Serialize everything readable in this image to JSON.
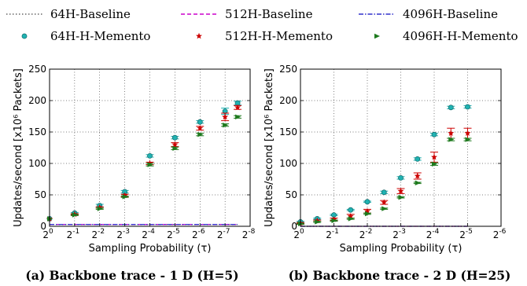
{
  "legend": [
    {
      "label": "64H-Baseline",
      "color": "#666666",
      "style": "dotted",
      "marker": "none"
    },
    {
      "label": "512H-Baseline",
      "color": "#cc00cc",
      "style": "dashed",
      "marker": "none"
    },
    {
      "label": "4096H-Baseline",
      "color": "#3030cc",
      "style": "dashdot",
      "marker": "none"
    },
    {
      "label": "64H-H-Memento",
      "color": "#20b2b2",
      "style": "none",
      "marker": "circle"
    },
    {
      "label": "512H-H-Memento",
      "color": "#cc0000",
      "style": "none",
      "marker": "star"
    },
    {
      "label": "4096H-H-Memento",
      "color": "#1e7a1e",
      "style": "none",
      "marker": "triangle"
    }
  ],
  "chart_data": [
    {
      "type": "scatter",
      "caption": "(a) Backbone trace - 1 D (H=5)",
      "xlabel": "Sampling Probability (τ)",
      "ylabel": "Updates/second [x10⁶ Packets]",
      "ylim": [
        0,
        250
      ],
      "yticks": [
        "0",
        "50",
        "100",
        "150",
        "200",
        "250"
      ],
      "xticks": [
        {
          "base": "2",
          "exp": "0"
        },
        {
          "base": "2",
          "exp": "-1"
        },
        {
          "base": "2",
          "exp": "-2"
        },
        {
          "base": "2",
          "exp": "-3"
        },
        {
          "base": "2",
          "exp": "-4"
        },
        {
          "base": "2",
          "exp": "-5"
        },
        {
          "base": "2",
          "exp": "-6"
        },
        {
          "base": "2",
          "exp": "-7"
        },
        {
          "base": "2",
          "exp": "-8"
        }
      ],
      "xlim": [
        0,
        8
      ],
      "grid": true,
      "x": [
        0,
        1,
        2,
        3,
        4,
        5,
        6,
        7,
        7.5
      ],
      "series": [
        {
          "name": "64H-Baseline",
          "values": [
            3,
            3,
            3,
            3,
            3,
            3,
            3,
            3,
            3
          ]
        },
        {
          "name": "512H-Baseline",
          "values": [
            3,
            3,
            3,
            3,
            3,
            3,
            3,
            3,
            3
          ]
        },
        {
          "name": "4096H-Baseline",
          "values": [
            3,
            3,
            3,
            3,
            3,
            3,
            3,
            3,
            3
          ]
        },
        {
          "name": "64H-H-Memento",
          "values": [
            12,
            21,
            33,
            55,
            112,
            141,
            166,
            183,
            196
          ]
        },
        {
          "name": "512H-H-Memento",
          "values": [
            12,
            19,
            30,
            49,
            100,
            130,
            156,
            174,
            189
          ]
        },
        {
          "name": "4096H-H-Memento",
          "values": [
            12,
            18,
            28,
            47,
            98,
            124,
            146,
            161,
            174
          ]
        }
      ],
      "errors": [
        {
          "name": "64H-H-Memento",
          "values": [
            0,
            1,
            2,
            2,
            2,
            2,
            2,
            5,
            3
          ]
        },
        {
          "name": "512H-H-Memento",
          "values": [
            0,
            1,
            1,
            2,
            2,
            3,
            3,
            6,
            3
          ]
        },
        {
          "name": "4096H-H-Memento",
          "values": [
            0,
            1,
            1,
            1,
            2,
            2,
            2,
            2,
            2
          ]
        }
      ]
    },
    {
      "type": "scatter",
      "caption": "(b) Backbone trace - 2 D (H=25)",
      "xlabel": "Sampling Probability (τ)",
      "ylabel": "Updates/second [x10⁶ Packets]",
      "ylim": [
        0,
        250
      ],
      "yticks": [
        "0",
        "50",
        "100",
        "150",
        "200",
        "250"
      ],
      "xticks": [
        {
          "base": "2",
          "exp": "0"
        },
        {
          "base": "2",
          "exp": "-1"
        },
        {
          "base": "2",
          "exp": "-2"
        },
        {
          "base": "2",
          "exp": "-3"
        },
        {
          "base": "2",
          "exp": "-4"
        },
        {
          "base": "2",
          "exp": "-5"
        },
        {
          "base": "2",
          "exp": "-6"
        }
      ],
      "xlim": [
        0,
        6
      ],
      "grid": true,
      "x": [
        0,
        0.5,
        1,
        1.5,
        2,
        2.5,
        3,
        3.5,
        4,
        4.5,
        5
      ],
      "series": [
        {
          "name": "64H-Baseline",
          "values": [
            0,
            0,
            0,
            0,
            0,
            0,
            0,
            0,
            0,
            0,
            0
          ]
        },
        {
          "name": "512H-Baseline",
          "values": [
            0,
            0,
            0,
            0,
            0,
            0,
            0,
            0,
            0,
            0,
            0
          ]
        },
        {
          "name": "4096H-Baseline",
          "values": [
            0,
            0,
            0,
            0,
            0,
            0,
            0,
            0,
            0,
            0,
            0
          ]
        },
        {
          "name": "64H-H-Memento",
          "values": [
            7,
            12,
            18,
            26,
            39,
            54,
            77,
            107,
            146,
            189,
            190
          ]
        },
        {
          "name": "512H-H-Memento",
          "values": [
            5,
            9,
            11,
            16,
            24,
            38,
            56,
            80,
            110,
            148,
            148
          ]
        },
        {
          "name": "4096H-H-Memento",
          "values": [
            4,
            7,
            9,
            12,
            20,
            28,
            46,
            69,
            99,
            138,
            138
          ]
        }
      ],
      "errors": [
        {
          "name": "64H-H-Memento",
          "values": [
            1,
            1,
            1,
            1,
            1,
            2,
            2,
            2,
            2,
            2,
            2
          ]
        },
        {
          "name": "512H-H-Memento",
          "values": [
            1,
            1,
            2,
            3,
            3,
            3,
            4,
            5,
            8,
            8,
            8
          ]
        },
        {
          "name": "4096H-H-Memento",
          "values": [
            1,
            1,
            1,
            1,
            1,
            1,
            1,
            1,
            2,
            2,
            2
          ]
        }
      ]
    }
  ]
}
